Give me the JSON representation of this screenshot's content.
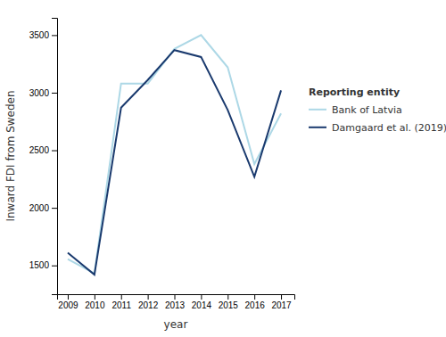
{
  "chart_data": {
    "type": "line",
    "x": [
      2009,
      2010,
      2011,
      2012,
      2013,
      2014,
      2015,
      2016,
      2017
    ],
    "series": [
      {
        "name": "Bank of Latvia",
        "color": "#add8e6",
        "values": [
          1555,
          1430,
          3080,
          3080,
          3380,
          3500,
          3220,
          2380,
          2820
        ]
      },
      {
        "name": "Damgaard et al. (2019)",
        "color": "#1a3a6e",
        "values": [
          1610,
          1420,
          2870,
          3110,
          3370,
          3310,
          2850,
          2270,
          3020
        ]
      }
    ],
    "xlabel": "year",
    "ylabel": "Inward FDI from Sweden",
    "legend_title": "Reporting entity",
    "xlim": [
      2008.6,
      2017.5
    ],
    "xticks": [
      2009,
      2010,
      2011,
      2012,
      2013,
      2014,
      2015,
      2016,
      2017
    ],
    "ylim": [
      1250,
      3650
    ],
    "yticks": [
      1500,
      2000,
      2500,
      3000,
      3500
    ],
    "grid": false,
    "legend": "right"
  }
}
